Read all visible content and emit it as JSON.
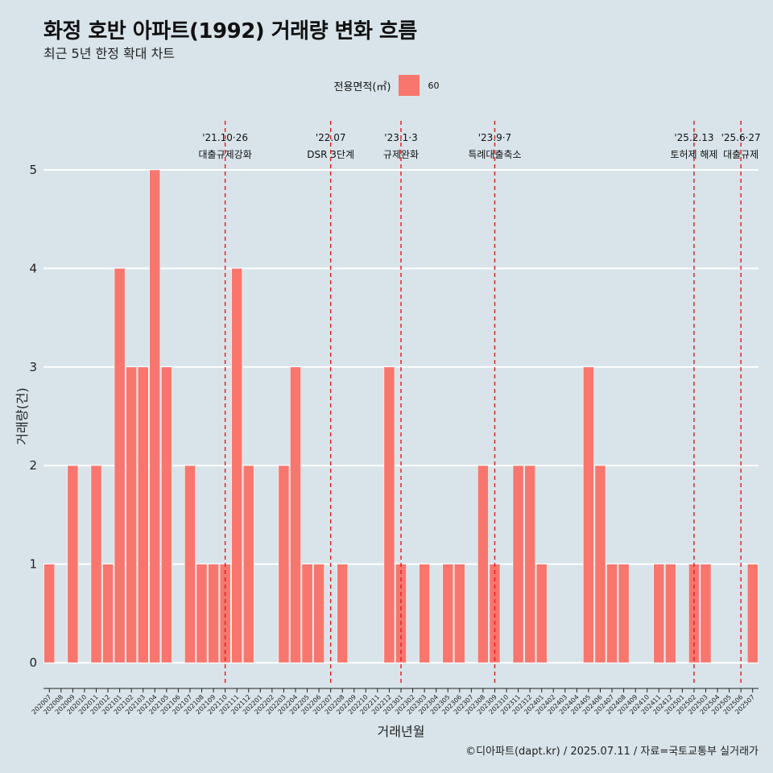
{
  "title": "화정 호반 아파트(1992) 거래량 변화 흐름",
  "subtitle": "최근 5년 한정 확대 차트",
  "legend": {
    "title": "전용면적(㎡)",
    "label": "60",
    "color": "#f8766d"
  },
  "caption": "©디아파트(dapt.kr) / 2025.07.11 / 자료=국토교통부 실거래가",
  "colors": {
    "background": "#d8e4ea",
    "bar": "#f8766d",
    "event_line": "#e41a1c",
    "grid": "#ffffff"
  },
  "chart_data": {
    "type": "bar",
    "title": "화정 호반 아파트(1992) 거래량 변화 흐름",
    "subtitle": "최근 5년 한정 확대 차트",
    "xlabel": "거래년월",
    "ylabel": "거래량(건)",
    "ylim": [
      -0.2,
      5.45
    ],
    "yticks": [
      0,
      1,
      2,
      3,
      4,
      5
    ],
    "grid": true,
    "legend_position": "top",
    "categories": [
      "202007",
      "202008",
      "202009",
      "202010",
      "202011",
      "202012",
      "202101",
      "202102",
      "202103",
      "202104",
      "202105",
      "202106",
      "202107",
      "202108",
      "202109",
      "202110",
      "202111",
      "202112",
      "202201",
      "202202",
      "202203",
      "202204",
      "202205",
      "202206",
      "202207",
      "202208",
      "202209",
      "202210",
      "202211",
      "202212",
      "202301",
      "202302",
      "202303",
      "202304",
      "202305",
      "202306",
      "202307",
      "202308",
      "202309",
      "202310",
      "202311",
      "202312",
      "202401",
      "202402",
      "202403",
      "202404",
      "202405",
      "202406",
      "202407",
      "202408",
      "202409",
      "202410",
      "202411",
      "202412",
      "202501",
      "202502",
      "202503",
      "202504",
      "202505",
      "202506",
      "202507"
    ],
    "series": [
      {
        "name": "60",
        "values": [
          1,
          0,
          2,
          0,
          2,
          1,
          4,
          3,
          3,
          5,
          3,
          0,
          2,
          1,
          1,
          1,
          4,
          2,
          0,
          0,
          2,
          3,
          1,
          1,
          0,
          1,
          0,
          0,
          0,
          3,
          1,
          0,
          1,
          0,
          1,
          1,
          0,
          2,
          1,
          0,
          2,
          2,
          1,
          0,
          0,
          0,
          3,
          2,
          1,
          1,
          0,
          0,
          1,
          1,
          0,
          1,
          1,
          0,
          0,
          0,
          1
        ]
      }
    ],
    "events": [
      {
        "x": "202110",
        "date": "'21.10·26",
        "label": "대출규제강화"
      },
      {
        "x": "202207",
        "date": "'22.07",
        "label": "DSR 3단계"
      },
      {
        "x": "202301",
        "date": "'23.1·3",
        "label": "규제완화"
      },
      {
        "x": "202309",
        "date": "'23.9·7",
        "label": "특례대출축소"
      },
      {
        "x": "202502",
        "date": "'25.2.13",
        "label": "토허제 해제"
      },
      {
        "x": "202506",
        "date": "'25.6·27",
        "label": "대출규제"
      }
    ]
  }
}
